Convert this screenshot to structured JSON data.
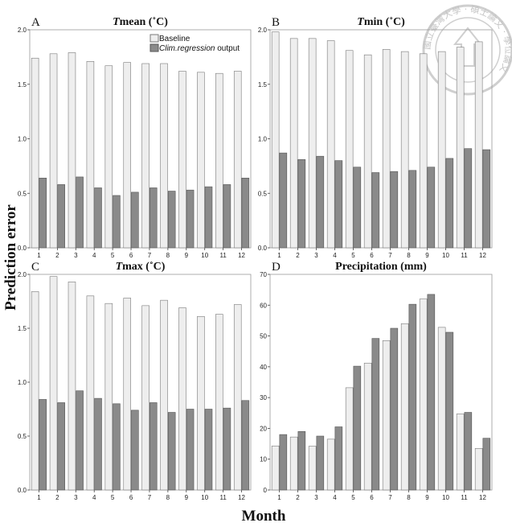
{
  "figure": {
    "ylabel": "Prediction error",
    "xlabel": "Month",
    "seal_text": "國立臺灣大學 · 碩士論文 · 學位論文"
  },
  "legend": {
    "baseline": "Baseline",
    "clim_italic": "Clim.regression",
    "clim_rest": " output"
  },
  "colors": {
    "baseline_fill": "#eeeeee",
    "baseline_stroke": "#7a7a7a",
    "clim_fill": "#8a8a8a",
    "clim_stroke": "#555555"
  },
  "chart_data": [
    {
      "id": "A",
      "type": "bar",
      "letter": "A",
      "title_italic": "T",
      "title_rest": "mean (˚C)",
      "categories": [
        "1",
        "2",
        "3",
        "4",
        "5",
        "6",
        "7",
        "8",
        "9",
        "10",
        "11",
        "12"
      ],
      "ylim": [
        0,
        2.0
      ],
      "yticks": [
        "0.0",
        "0.5",
        "1.0",
        "1.5",
        "2.0"
      ],
      "series": [
        {
          "name": "Baseline",
          "values": [
            1.74,
            1.78,
            1.79,
            1.71,
            1.67,
            1.7,
            1.69,
            1.69,
            1.62,
            1.61,
            1.6,
            1.62
          ]
        },
        {
          "name": "Clim.regression output",
          "values": [
            0.64,
            0.58,
            0.65,
            0.55,
            0.48,
            0.51,
            0.55,
            0.52,
            0.53,
            0.56,
            0.58,
            0.64
          ]
        }
      ]
    },
    {
      "id": "B",
      "type": "bar",
      "letter": "B",
      "title_italic": "T",
      "title_rest": "min (˚C)",
      "categories": [
        "1",
        "2",
        "3",
        "4",
        "5",
        "6",
        "7",
        "8",
        "9",
        "10",
        "11",
        "12"
      ],
      "ylim": [
        0,
        2.0
      ],
      "yticks": [
        "0.0",
        "0.5",
        "1.0",
        "1.5",
        "2.0"
      ],
      "series": [
        {
          "name": "Baseline",
          "values": [
            1.98,
            1.92,
            1.92,
            1.9,
            1.81,
            1.77,
            1.82,
            1.8,
            1.78,
            1.8,
            1.84,
            1.89
          ]
        },
        {
          "name": "Clim.regression output",
          "values": [
            0.87,
            0.81,
            0.84,
            0.8,
            0.74,
            0.69,
            0.7,
            0.71,
            0.74,
            0.82,
            0.91,
            0.9
          ]
        }
      ]
    },
    {
      "id": "C",
      "type": "bar",
      "letter": "C",
      "title_italic": "T",
      "title_rest": "max (˚C)",
      "categories": [
        "1",
        "2",
        "3",
        "4",
        "5",
        "6",
        "7",
        "8",
        "9",
        "10",
        "11",
        "12"
      ],
      "ylim": [
        0,
        2.0
      ],
      "yticks": [
        "0.0",
        "0.5",
        "1.0",
        "1.5",
        "2.0"
      ],
      "series": [
        {
          "name": "Baseline",
          "values": [
            1.84,
            1.98,
            1.93,
            1.8,
            1.73,
            1.78,
            1.71,
            1.76,
            1.69,
            1.61,
            1.63,
            1.72
          ]
        },
        {
          "name": "Clim.regression output",
          "values": [
            0.84,
            0.81,
            0.92,
            0.85,
            0.8,
            0.74,
            0.81,
            0.72,
            0.75,
            0.75,
            0.76,
            0.83
          ]
        }
      ]
    },
    {
      "id": "D",
      "type": "bar",
      "letter": "D",
      "title_italic": "",
      "title_rest": "Precipitation (mm)",
      "categories": [
        "1",
        "2",
        "3",
        "4",
        "5",
        "6",
        "7",
        "8",
        "9",
        "10",
        "11",
        "12"
      ],
      "ylim": [
        0,
        70
      ],
      "yticks": [
        "0",
        "10",
        "20",
        "30",
        "40",
        "50",
        "60",
        "70"
      ],
      "series": [
        {
          "name": "Baseline",
          "values": [
            14.3,
            17.2,
            14.2,
            16.5,
            33.2,
            41.2,
            48.5,
            54.0,
            62.0,
            52.8,
            24.7,
            13.5
          ]
        },
        {
          "name": "Clim.regression output",
          "values": [
            18.0,
            19.0,
            17.5,
            20.5,
            40.2,
            49.2,
            52.5,
            60.3,
            63.5,
            51.2,
            25.2,
            16.8
          ]
        }
      ]
    }
  ]
}
